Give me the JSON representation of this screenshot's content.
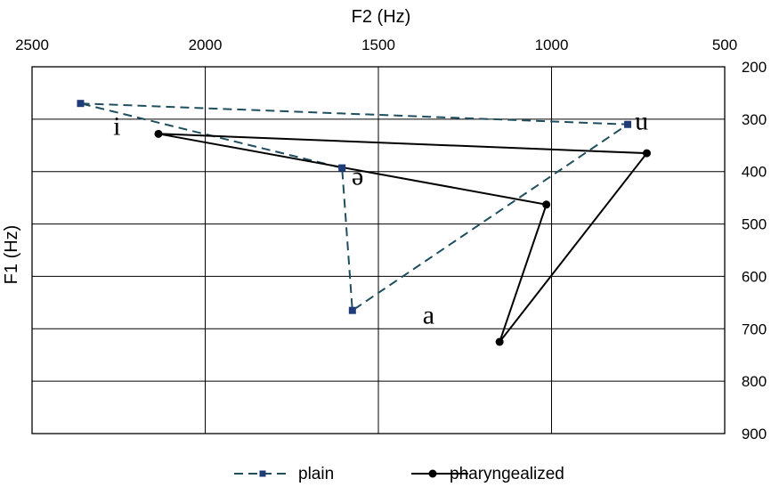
{
  "chart_data": {
    "type": "scatter",
    "xlabel": "F2 (Hz)",
    "ylabel": "F1 (Hz)",
    "xlim": [
      2500,
      500
    ],
    "ylim": [
      200,
      900
    ],
    "x_reversed": true,
    "y_reversed": true,
    "x_ticks": [
      2500,
      2000,
      1500,
      1000,
      500
    ],
    "y_ticks": [
      200,
      300,
      400,
      500,
      600,
      700,
      800,
      900
    ],
    "x_axis_position": "top",
    "y_axis_position": "right",
    "grid": true,
    "legend_position": "bottom",
    "series": [
      {
        "name": "plain",
        "color": "#1f4e5f",
        "line_style": "dashed",
        "marker": "square",
        "points": [
          {
            "vowel": "i",
            "x": 2360,
            "y": 270
          },
          {
            "vowel": "u",
            "x": 780,
            "y": 310
          },
          {
            "vowel": "a",
            "x": 1575,
            "y": 665
          },
          {
            "vowel": "ə",
            "x": 1605,
            "y": 393
          }
        ],
        "path_order": [
          "i",
          "u",
          "a",
          "ə",
          "i"
        ]
      },
      {
        "name": "pharyngealized",
        "color": "#000000",
        "line_style": "solid",
        "marker": "circle",
        "points": [
          {
            "vowel": "i",
            "x": 2135,
            "y": 328
          },
          {
            "vowel": "u",
            "x": 725,
            "y": 365
          },
          {
            "vowel": "a",
            "x": 1150,
            "y": 725
          },
          {
            "vowel": "ə",
            "x": 1015,
            "y": 463
          }
        ],
        "path_order": [
          "i",
          "u",
          "a",
          "ə",
          "i"
        ]
      }
    ],
    "vowel_labels": [
      {
        "text": "i",
        "x": 2255,
        "y": 330
      },
      {
        "text": "u",
        "x": 740,
        "y": 320
      },
      {
        "text": "ə",
        "x": 1560,
        "y": 425
      },
      {
        "text": "a",
        "x": 1355,
        "y": 690
      }
    ]
  }
}
